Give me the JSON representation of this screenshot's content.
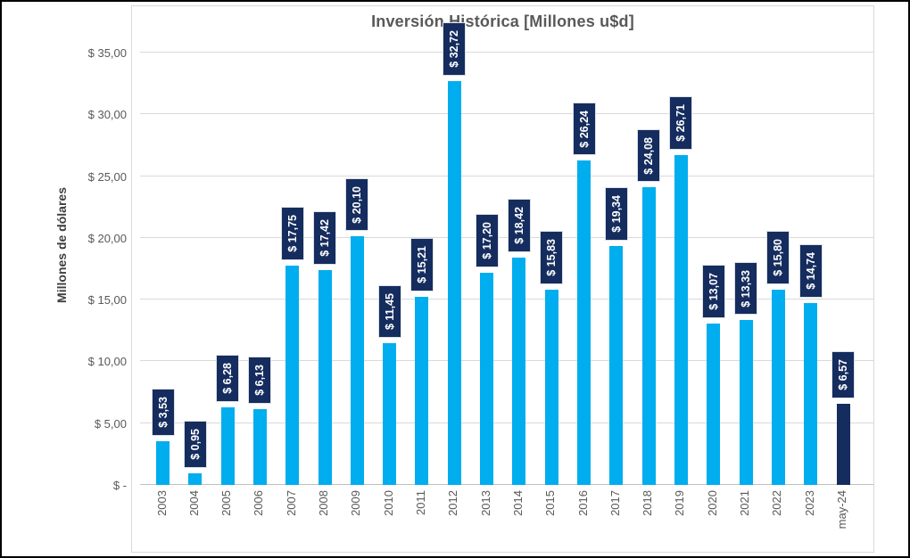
{
  "window": {
    "background_color": "#FFFFFF",
    "border_color": "#000000"
  },
  "chart_data": {
    "type": "bar",
    "title": "Inversión Histórica [Millones u$d]",
    "xlabel": "",
    "ylabel": "Millones de dólares",
    "categories": [
      "2003",
      "2004",
      "2005",
      "2006",
      "2007",
      "2008",
      "2009",
      "2010",
      "2011",
      "2012",
      "2013",
      "2014",
      "2015",
      "2016",
      "2017",
      "2018",
      "2019",
      "2020",
      "2021",
      "2022",
      "2023",
      "may-24"
    ],
    "values": [
      3.53,
      0.95,
      6.28,
      6.13,
      17.75,
      17.42,
      20.1,
      11.45,
      15.21,
      32.72,
      17.2,
      18.42,
      15.83,
      26.24,
      19.34,
      24.08,
      26.71,
      13.07,
      13.33,
      15.8,
      14.74,
      6.57
    ],
    "value_labels": [
      "$ 3,53",
      "$ 0,95",
      "$ 6,28",
      "$ 6,13",
      "$ 17,75",
      "$ 17,42",
      "$ 20,10",
      "$ 11,45",
      "$ 15,21",
      "$ 32,72",
      "$ 17,20",
      "$ 18,42",
      "$ 15,83",
      "$ 26,24",
      "$ 19,34",
      "$ 24,08",
      "$ 26,71",
      "$ 13,07",
      "$ 13,33",
      "$ 15,80",
      "$ 14,74",
      "$ 6,57"
    ],
    "y_ticks": [
      {
        "label": "$ -",
        "value": 0
      },
      {
        "label": "$ 5,00",
        "value": 5
      },
      {
        "label": "$ 10,00",
        "value": 10
      },
      {
        "label": "$ 15,00",
        "value": 15
      },
      {
        "label": "$ 20,00",
        "value": 20
      },
      {
        "label": "$ 25,00",
        "value": 25
      },
      {
        "label": "$ 30,00",
        "value": 30
      },
      {
        "label": "$ 35,00",
        "value": 35
      }
    ],
    "ylim": [
      0,
      35
    ],
    "grid": true,
    "legend": "none",
    "bar_color": "#00ADEE",
    "highlight_color": "#152C5E",
    "highlight_index": 21,
    "label_box_color": "#152C5E",
    "label_text_color": "#FFFFFF",
    "orientation": "vertical",
    "value_label_rotation": 90,
    "category_label_rotation": 90
  }
}
